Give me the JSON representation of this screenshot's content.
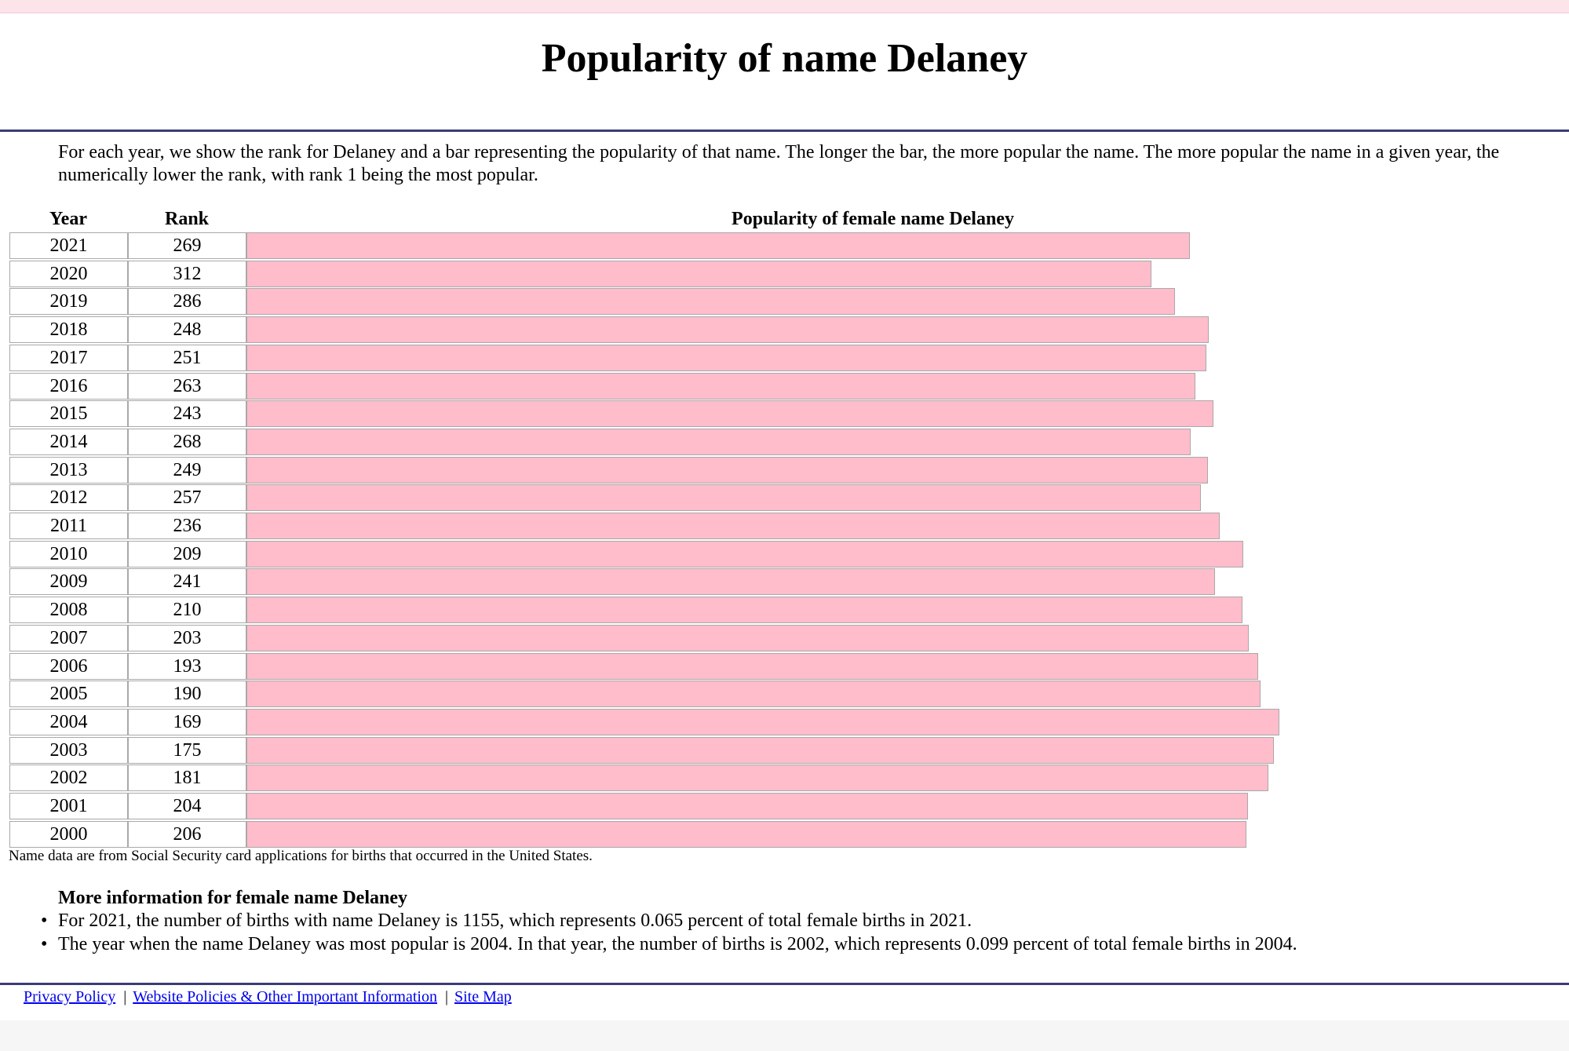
{
  "header": {
    "title": "Popularity of name Delaney"
  },
  "intro": "For each year, we show the rank for Delaney and a bar representing the popularity of that name. The longer the bar, the more popular the name. The more popular the name in a given year, the numerically lower the rank, with rank 1 being the most popular.",
  "table_headers": {
    "year": "Year",
    "rank": "Rank",
    "popularity": "Popularity of female name Delaney"
  },
  "colors": {
    "bar": "#ffbccb",
    "rule": "#3b3b78"
  },
  "chart_data": {
    "type": "bar",
    "title": "Popularity of female name Delaney",
    "categories": [
      "2021",
      "2020",
      "2019",
      "2018",
      "2017",
      "2016",
      "2015",
      "2014",
      "2013",
      "2012",
      "2011",
      "2010",
      "2009",
      "2008",
      "2007",
      "2006",
      "2005",
      "2004",
      "2003",
      "2002",
      "2001",
      "2000"
    ],
    "series": [
      {
        "values": [
          269,
          312,
          286,
          248,
          251,
          263,
          243,
          268,
          249,
          257,
          236,
          209,
          241,
          210,
          203,
          193,
          190,
          169,
          175,
          181,
          204,
          206
        ]
      }
    ]
  },
  "source_note": "Name data are from Social Security card applications for births that occurred in the United States.",
  "more_info": {
    "title": "More information for female name Delaney",
    "items": [
      "For 2021, the number of births with name Delaney is 1155, which represents 0.065 percent of total female births in 2021.",
      "The year when the name Delaney was most popular is 2004. In that year, the number of births is 2002, which represents 0.099 percent of total female births in 2004."
    ]
  },
  "footer": {
    "links": [
      "Privacy Policy",
      "Website Policies & Other Important Information",
      "Site Map"
    ]
  }
}
